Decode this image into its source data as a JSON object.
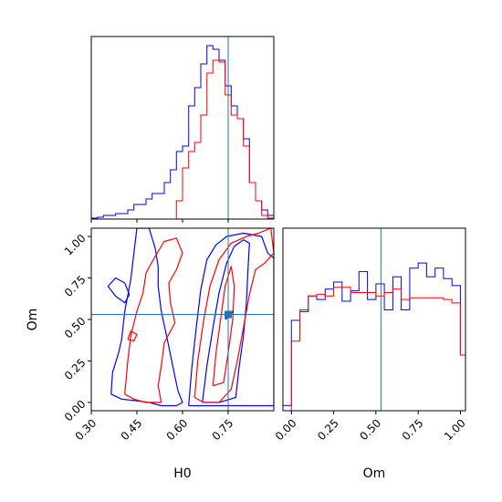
{
  "chart_data": [
    {
      "panel": "H0 marginal",
      "type": "histogram",
      "xlim": [
        0.3,
        0.9
      ],
      "truth": 0.75,
      "bins": [
        0.3,
        0.32,
        0.34,
        0.36,
        0.38,
        0.4,
        0.42,
        0.44,
        0.46,
        0.48,
        0.5,
        0.52,
        0.54,
        0.56,
        0.58,
        0.6,
        0.62,
        0.64,
        0.66,
        0.68,
        0.7,
        0.72,
        0.74,
        0.76,
        0.78,
        0.8,
        0.82,
        0.84,
        0.86,
        0.88,
        0.9
      ],
      "series": [
        {
          "color": "#0000ff",
          "values": [
            0.5,
            1,
            2,
            2,
            3,
            3,
            5,
            8,
            8,
            11,
            14,
            14,
            20,
            27,
            37,
            40,
            62,
            72,
            85,
            95,
            93,
            87,
            73,
            62,
            55,
            44,
            20,
            10,
            5,
            2
          ]
        },
        {
          "color": "#ff0000",
          "values": [
            0,
            0,
            0,
            0,
            0,
            0,
            0,
            0,
            0,
            0,
            0,
            0,
            0,
            0,
            10,
            28,
            37,
            42,
            57,
            80,
            87,
            86,
            68,
            57,
            55,
            40,
            20,
            10,
            2,
            0.5
          ]
        }
      ]
    },
    {
      "panel": "Om marginal",
      "type": "histogram",
      "xlim": [
        -0.05,
        1.03
      ],
      "xticks": [
        "0.00",
        "0.25",
        "0.50",
        "0.75",
        "1.00"
      ],
      "xlabel": "Om",
      "truth": 0.53,
      "bins": [
        -0.05,
        0.0,
        0.05,
        0.1,
        0.15,
        0.2,
        0.25,
        0.3,
        0.35,
        0.4,
        0.45,
        0.5,
        0.55,
        0.6,
        0.65,
        0.7,
        0.75,
        0.8,
        0.85,
        0.9,
        0.95,
        1.0,
        1.03
      ],
      "series": [
        {
          "color": "#0000ff",
          "values": [
            3,
            52,
            57,
            66,
            64,
            70,
            74,
            63,
            69,
            80,
            64,
            73,
            58,
            77,
            58,
            82,
            85,
            77,
            82,
            76,
            72,
            32
          ]
        },
        {
          "color": "#ff0000",
          "values": [
            0,
            40,
            58,
            66,
            67,
            66,
            71,
            71,
            68,
            68,
            68,
            66,
            68,
            70,
            64,
            65,
            65,
            65,
            65,
            64,
            62,
            32
          ]
        }
      ]
    },
    {
      "panel": "H0 vs Om",
      "type": "contour",
      "xlim": [
        0.3,
        0.9
      ],
      "ylim": [
        -0.05,
        1.05
      ],
      "xticks": [
        "0.30",
        "0.45",
        "0.60",
        "0.75"
      ],
      "yticks": [
        "0.00",
        "0.25",
        "0.50",
        "0.75",
        "1.00"
      ],
      "xlabel": "H0",
      "ylabel": "Om",
      "truth": [
        0.75,
        0.53
      ],
      "series": [
        {
          "color": "#0000ff",
          "contours": [
            [
              [
                0.365,
                0.05
              ],
              [
                0.37,
                0.18
              ],
              [
                0.39,
                0.3
              ],
              [
                0.4,
                0.38
              ],
              [
                0.41,
                0.55
              ],
              [
                0.43,
                0.74
              ],
              [
                0.44,
                0.9
              ],
              [
                0.45,
                1.05
              ],
              [
                0.49,
                1.05
              ],
              [
                0.51,
                0.93
              ],
              [
                0.52,
                0.82
              ],
              [
                0.52,
                0.7
              ],
              [
                0.53,
                0.55
              ],
              [
                0.55,
                0.38
              ],
              [
                0.57,
                0.2
              ],
              [
                0.585,
                0.07
              ],
              [
                0.6,
                0.0
              ],
              [
                0.58,
                -0.02
              ],
              [
                0.53,
                -0.02
              ],
              [
                0.49,
                0.0
              ],
              [
                0.45,
                0.01
              ],
              [
                0.4,
                0.02
              ],
              [
                0.365,
                0.05
              ]
            ],
            [
              [
                0.355,
                0.7
              ],
              [
                0.38,
                0.64
              ],
              [
                0.41,
                0.6
              ],
              [
                0.425,
                0.65
              ],
              [
                0.41,
                0.72
              ],
              [
                0.38,
                0.75
              ],
              [
                0.355,
                0.7
              ]
            ],
            [
              [
                0.62,
                -0.02
              ],
              [
                0.63,
                0.2
              ],
              [
                0.645,
                0.45
              ],
              [
                0.66,
                0.68
              ],
              [
                0.68,
                0.86
              ],
              [
                0.71,
                0.95
              ],
              [
                0.745,
                1.0
              ],
              [
                0.8,
                1.02
              ],
              [
                0.86,
                1.0
              ],
              [
                0.88,
                0.9
              ],
              [
                0.9,
                0.87
              ],
              [
                0.9,
                -0.02
              ],
              [
                0.62,
                -0.02
              ]
            ],
            [
              [
                0.665,
                0.0
              ],
              [
                0.68,
                0.22
              ],
              [
                0.7,
                0.45
              ],
              [
                0.72,
                0.66
              ],
              [
                0.745,
                0.84
              ],
              [
                0.77,
                0.94
              ],
              [
                0.8,
                0.98
              ],
              [
                0.82,
                0.96
              ],
              [
                0.815,
                0.8
              ],
              [
                0.81,
                0.6
              ],
              [
                0.8,
                0.4
              ],
              [
                0.785,
                0.2
              ],
              [
                0.775,
                0.03
              ],
              [
                0.72,
                0.0
              ],
              [
                0.665,
                0.0
              ]
            ],
            [
              [
                0.74,
                0.5
              ],
              [
                0.755,
                0.53
              ],
              [
                0.765,
                0.55
              ],
              [
                0.755,
                0.52
              ],
              [
                0.74,
                0.5
              ]
            ]
          ]
        },
        {
          "color": "#ff0000",
          "contours": [
            [
              [
                0.41,
                0.05
              ],
              [
                0.42,
                0.25
              ],
              [
                0.43,
                0.4
              ],
              [
                0.45,
                0.55
              ],
              [
                0.47,
                0.66
              ],
              [
                0.48,
                0.78
              ],
              [
                0.51,
                0.88
              ],
              [
                0.54,
                0.97
              ],
              [
                0.58,
                0.99
              ],
              [
                0.6,
                0.9
              ],
              [
                0.58,
                0.8
              ],
              [
                0.555,
                0.72
              ],
              [
                0.56,
                0.6
              ],
              [
                0.575,
                0.48
              ],
              [
                0.54,
                0.36
              ],
              [
                0.53,
                0.22
              ],
              [
                0.52,
                0.1
              ],
              [
                0.53,
                0.0
              ],
              [
                0.48,
                0.0
              ],
              [
                0.44,
                0.02
              ],
              [
                0.41,
                0.05
              ]
            ],
            [
              [
                0.42,
                0.38
              ],
              [
                0.43,
                0.43
              ],
              [
                0.45,
                0.41
              ],
              [
                0.44,
                0.37
              ],
              [
                0.42,
                0.38
              ]
            ],
            [
              [
                0.64,
                0.03
              ],
              [
                0.65,
                0.25
              ],
              [
                0.67,
                0.5
              ],
              [
                0.69,
                0.7
              ],
              [
                0.72,
                0.86
              ],
              [
                0.76,
                0.96
              ],
              [
                0.81,
                1.0
              ],
              [
                0.85,
                1.02
              ],
              [
                0.89,
                1.05
              ],
              [
                0.9,
                0.9
              ],
              [
                0.87,
                0.84
              ],
              [
                0.84,
                0.8
              ],
              [
                0.82,
                0.65
              ],
              [
                0.8,
                0.45
              ],
              [
                0.78,
                0.25
              ],
              [
                0.76,
                0.08
              ],
              [
                0.72,
                0.0
              ],
              [
                0.67,
                0.0
              ],
              [
                0.64,
                0.03
              ]
            ],
            [
              [
                0.7,
                0.1
              ],
              [
                0.71,
                0.3
              ],
              [
                0.725,
                0.5
              ],
              [
                0.74,
                0.7
              ],
              [
                0.76,
                0.82
              ],
              [
                0.77,
                0.7
              ],
              [
                0.765,
                0.5
              ],
              [
                0.75,
                0.3
              ],
              [
                0.735,
                0.12
              ],
              [
                0.7,
                0.1
              ]
            ]
          ]
        }
      ]
    }
  ]
}
